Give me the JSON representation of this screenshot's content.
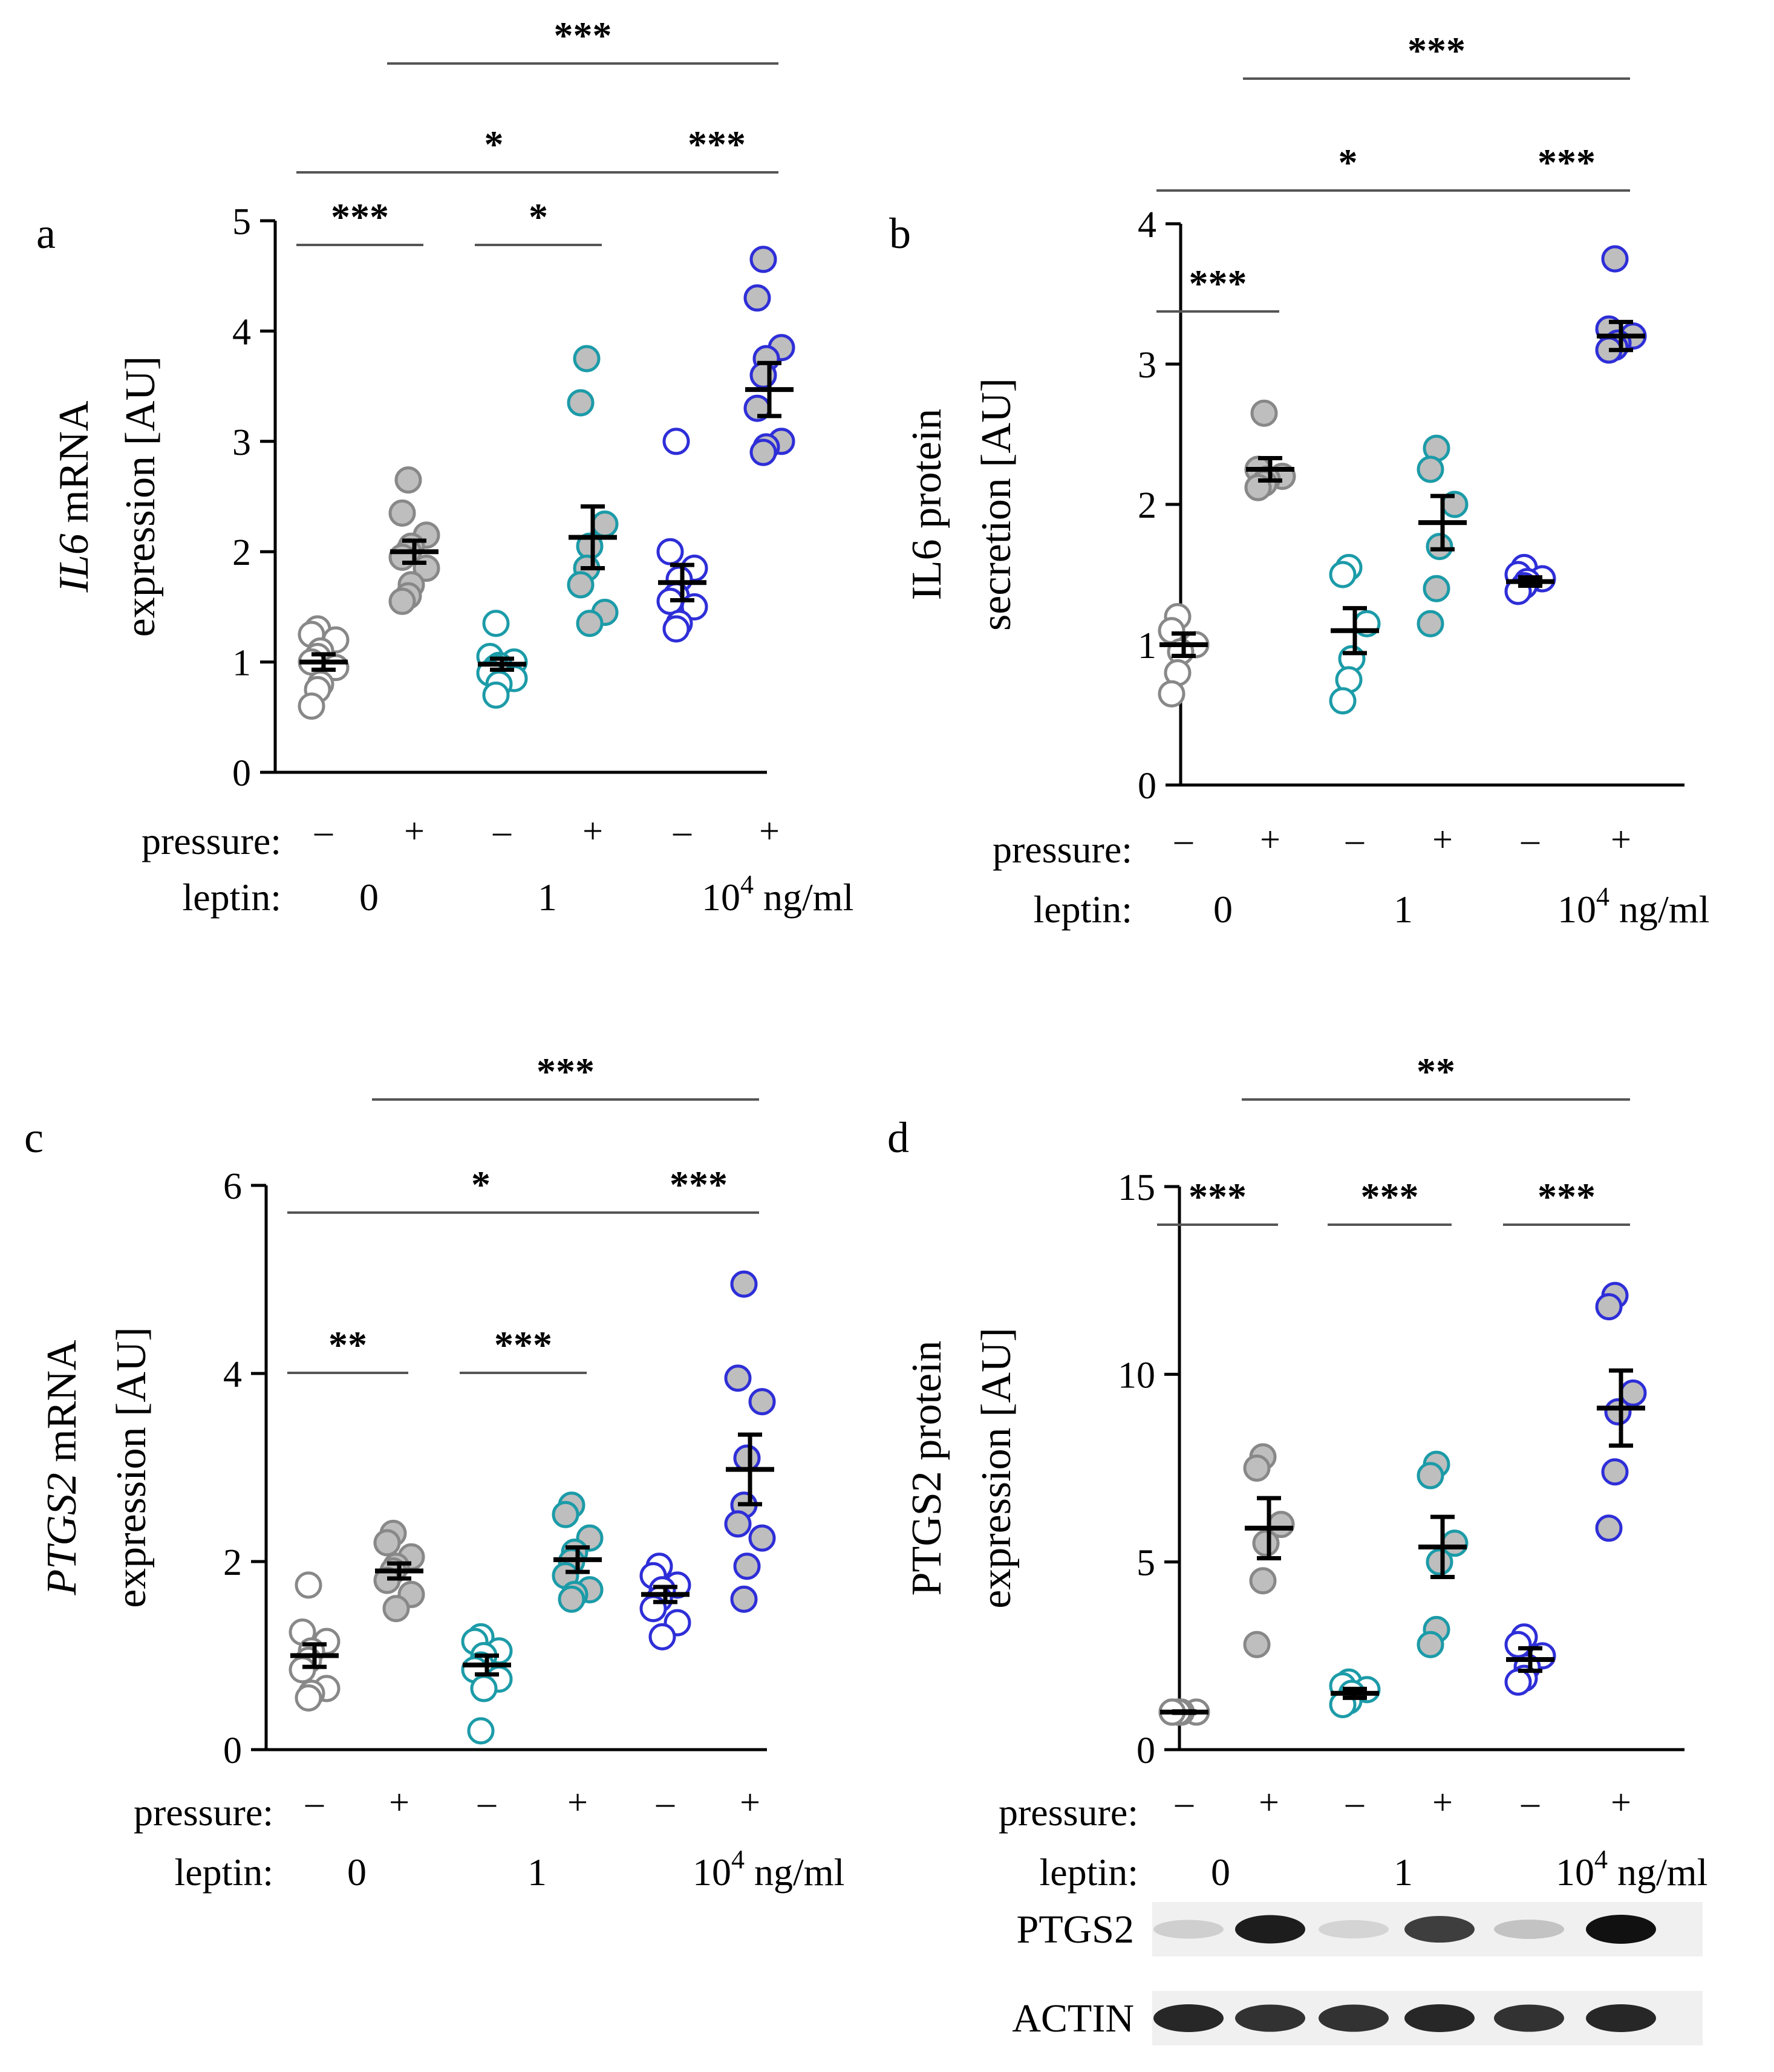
{
  "colors": {
    "axis": "#000000",
    "grey_fill": "#BEBEBE",
    "grey_edge": "#888888",
    "teal": "#1C9BA8",
    "blue": "#2E2ED8",
    "sig_line": "#555555",
    "band": "#111111",
    "blot_bg": "#F0F0F0"
  },
  "labels": {
    "pressure": "pressure:",
    "leptin": "leptin:",
    "minus": "–",
    "plus": "+",
    "leptin_0": "0",
    "leptin_1": "1",
    "leptin_104_base": "10",
    "leptin_104_exp": "4",
    "leptin_unit": "ng/ml"
  },
  "blot": {
    "lanes": [
      "–",
      "+",
      "–",
      "+",
      "–",
      "+"
    ],
    "rows": [
      {
        "label": "PTGS2",
        "intensity": [
          0.15,
          0.95,
          0.12,
          0.8,
          0.2,
          1.0
        ]
      },
      {
        "label": "ACTIN",
        "intensity": [
          0.9,
          0.85,
          0.85,
          0.9,
          0.85,
          0.9
        ]
      }
    ]
  },
  "chart_data": [
    {
      "type": "scatter",
      "panel": "a",
      "ylabel_italic": "IL6",
      "ylabel_rest": " mRNA",
      "ylabel_line2": "expression [AU]",
      "ylim": [
        0,
        5
      ],
      "yticks": [
        0,
        1,
        2,
        3,
        4,
        5
      ],
      "groups": [
        {
          "pressure": "–",
          "leptin": "0",
          "style": "grey-open",
          "mean": 1.0,
          "sem": 0.07,
          "points": [
            1.3,
            1.25,
            1.2,
            1.1,
            1.05,
            1.0,
            0.95,
            0.8,
            0.75,
            0.6
          ]
        },
        {
          "pressure": "+",
          "leptin": "0",
          "style": "grey-filled",
          "mean": 2.0,
          "sem": 0.1,
          "points": [
            2.65,
            2.35,
            2.15,
            2.05,
            2.0,
            1.95,
            1.85,
            1.7,
            1.6,
            1.55
          ]
        },
        {
          "pressure": "–",
          "leptin": "1",
          "style": "teal-open",
          "mean": 0.98,
          "sem": 0.05,
          "points": [
            1.35,
            1.05,
            1.0,
            0.97,
            0.95,
            0.9,
            0.85,
            0.8,
            0.7
          ]
        },
        {
          "pressure": "+",
          "leptin": "1",
          "style": "teal-filled",
          "mean": 2.13,
          "sem": 0.28,
          "points": [
            3.75,
            3.35,
            2.25,
            2.05,
            1.85,
            1.7,
            1.45,
            1.35
          ]
        },
        {
          "pressure": "–",
          "leptin": "10^4",
          "style": "blue-open",
          "mean": 1.72,
          "sem": 0.16,
          "points": [
            3.0,
            2.0,
            1.85,
            1.75,
            1.6,
            1.55,
            1.5,
            1.35,
            1.3
          ]
        },
        {
          "pressure": "+",
          "leptin": "10^4",
          "style": "blue-filled",
          "mean": 3.47,
          "sem": 0.24,
          "points": [
            4.65,
            4.3,
            3.85,
            3.75,
            3.6,
            3.3,
            3.0,
            2.95,
            2.9
          ]
        }
      ],
      "significance": [
        {
          "from": 0,
          "to": 1,
          "label": "***",
          "level": 0
        },
        {
          "from": 2,
          "to": 3,
          "label": "*",
          "level": 0
        },
        {
          "from": 4,
          "to": 5,
          "label": "***",
          "level": 1
        },
        {
          "from": 0,
          "to": 4,
          "label": "*",
          "level": 1
        },
        {
          "from": 1,
          "to": 5,
          "label": "***",
          "level": 2
        }
      ]
    },
    {
      "type": "scatter",
      "panel": "b",
      "ylabel_italic": "",
      "ylabel_rest": "IL6 protein",
      "ylabel_line2": "secretion [AU]",
      "ylim": [
        0,
        4
      ],
      "yticks": [
        0,
        1,
        2,
        3,
        4
      ],
      "groups": [
        {
          "pressure": "–",
          "leptin": "0",
          "style": "grey-open",
          "mean": 1.0,
          "sem": 0.08,
          "points": [
            1.2,
            1.1,
            1.0,
            0.95,
            0.8,
            0.65
          ]
        },
        {
          "pressure": "+",
          "leptin": "0",
          "style": "grey-filled",
          "mean": 2.25,
          "sem": 0.08,
          "points": [
            2.65,
            2.25,
            2.2,
            2.18,
            2.15,
            2.12
          ]
        },
        {
          "pressure": "–",
          "leptin": "1",
          "style": "teal-open",
          "mean": 1.1,
          "sem": 0.16,
          "points": [
            1.55,
            1.5,
            1.15,
            0.9,
            0.75,
            0.6
          ]
        },
        {
          "pressure": "+",
          "leptin": "1",
          "style": "teal-filled",
          "mean": 1.87,
          "sem": 0.19,
          "points": [
            2.4,
            2.25,
            2.0,
            1.7,
            1.4,
            1.15
          ]
        },
        {
          "pressure": "–",
          "leptin": "10^4",
          "style": "blue-open",
          "mean": 1.45,
          "sem": 0.03,
          "points": [
            1.55,
            1.5,
            1.47,
            1.45,
            1.42,
            1.38
          ]
        },
        {
          "pressure": "+",
          "leptin": "10^4",
          "style": "blue-filled",
          "mean": 3.2,
          "sem": 0.1,
          "points": [
            3.75,
            3.25,
            3.2,
            3.15,
            3.12,
            3.1
          ]
        }
      ],
      "significance": [
        {
          "from": 0,
          "to": 1,
          "label": "***",
          "level": 0
        },
        {
          "from": 4,
          "to": 5,
          "label": "***",
          "level": 1
        },
        {
          "from": 0,
          "to": 4,
          "label": "*",
          "level": 1
        },
        {
          "from": 1,
          "to": 5,
          "label": "***",
          "level": 2
        }
      ]
    },
    {
      "type": "scatter",
      "panel": "c",
      "ylabel_italic": "PTGS2",
      "ylabel_rest": " mRNA",
      "ylabel_line2": "expression [AU]",
      "ylim": [
        0,
        6
      ],
      "yticks": [
        0,
        2,
        4,
        6
      ],
      "groups": [
        {
          "pressure": "–",
          "leptin": "0",
          "style": "grey-open",
          "mean": 1.0,
          "sem": 0.12,
          "points": [
            1.75,
            1.25,
            1.15,
            1.05,
            0.95,
            0.85,
            0.65,
            0.6,
            0.55
          ]
        },
        {
          "pressure": "+",
          "leptin": "0",
          "style": "grey-filled",
          "mean": 1.9,
          "sem": 0.08,
          "points": [
            2.3,
            2.2,
            2.05,
            1.95,
            1.9,
            1.8,
            1.65,
            1.5
          ]
        },
        {
          "pressure": "–",
          "leptin": "1",
          "style": "teal-open",
          "mean": 0.9,
          "sem": 0.1,
          "points": [
            1.2,
            1.15,
            1.05,
            1.0,
            0.9,
            0.85,
            0.75,
            0.65,
            0.2
          ]
        },
        {
          "pressure": "+",
          "leptin": "1",
          "style": "teal-filled",
          "mean": 2.02,
          "sem": 0.13,
          "points": [
            2.6,
            2.5,
            2.25,
            2.1,
            2.0,
            1.85,
            1.7,
            1.65,
            1.6
          ]
        },
        {
          "pressure": "–",
          "leptin": "10^4",
          "style": "blue-open",
          "mean": 1.65,
          "sem": 0.08,
          "points": [
            1.95,
            1.85,
            1.75,
            1.7,
            1.6,
            1.5,
            1.35,
            1.2
          ]
        },
        {
          "pressure": "+",
          "leptin": "10^4",
          "style": "blue-filled",
          "mean": 2.98,
          "sem": 0.37,
          "points": [
            4.95,
            3.95,
            3.7,
            3.1,
            2.6,
            2.4,
            2.25,
            1.95,
            1.6
          ]
        }
      ],
      "significance": [
        {
          "from": 0,
          "to": 1,
          "label": "**",
          "level": 0
        },
        {
          "from": 2,
          "to": 3,
          "label": "***",
          "level": 0
        },
        {
          "from": 4,
          "to": 5,
          "label": "***",
          "level": 1
        },
        {
          "from": 0,
          "to": 4,
          "label": "*",
          "level": 1
        },
        {
          "from": 1,
          "to": 5,
          "label": "***",
          "level": 2
        }
      ]
    },
    {
      "type": "scatter",
      "panel": "d",
      "ylabel_italic": "",
      "ylabel_rest": "PTGS2 protein",
      "ylabel_line2": "expression [AU]",
      "ylim": [
        0,
        15
      ],
      "yticks": [
        0,
        5,
        10,
        15
      ],
      "groups": [
        {
          "pressure": "–",
          "leptin": "0",
          "style": "grey-open",
          "mean": 1.0,
          "sem": 0.02,
          "points": [
            1.0,
            1.0,
            1.0,
            1.0,
            1.0,
            1.0
          ]
        },
        {
          "pressure": "+",
          "leptin": "0",
          "style": "grey-filled",
          "mean": 5.9,
          "sem": 0.8,
          "points": [
            7.8,
            7.5,
            6.0,
            5.5,
            4.5,
            2.8
          ]
        },
        {
          "pressure": "–",
          "leptin": "1",
          "style": "teal-open",
          "mean": 1.5,
          "sem": 0.12,
          "points": [
            1.8,
            1.7,
            1.6,
            1.5,
            1.3,
            1.2
          ]
        },
        {
          "pressure": "+",
          "leptin": "1",
          "style": "teal-filled",
          "mean": 5.4,
          "sem": 0.8,
          "points": [
            7.6,
            7.3,
            5.5,
            5.0,
            3.2,
            2.8
          ]
        },
        {
          "pressure": "–",
          "leptin": "10^4",
          "style": "blue-open",
          "mean": 2.4,
          "sem": 0.3,
          "points": [
            3.0,
            2.8,
            2.5,
            2.2,
            1.9,
            1.8
          ]
        },
        {
          "pressure": "+",
          "leptin": "10^4",
          "style": "blue-filled",
          "mean": 9.1,
          "sem": 1.0,
          "points": [
            12.1,
            11.8,
            9.5,
            9.0,
            7.4,
            5.9
          ]
        }
      ],
      "significance": [
        {
          "from": 0,
          "to": 1,
          "label": "***",
          "level": 0
        },
        {
          "from": 2,
          "to": 3,
          "label": "***",
          "level": 0
        },
        {
          "from": 4,
          "to": 5,
          "label": "***",
          "level": 0
        },
        {
          "from": 1,
          "to": 5,
          "label": "**",
          "level": 2
        }
      ]
    }
  ]
}
